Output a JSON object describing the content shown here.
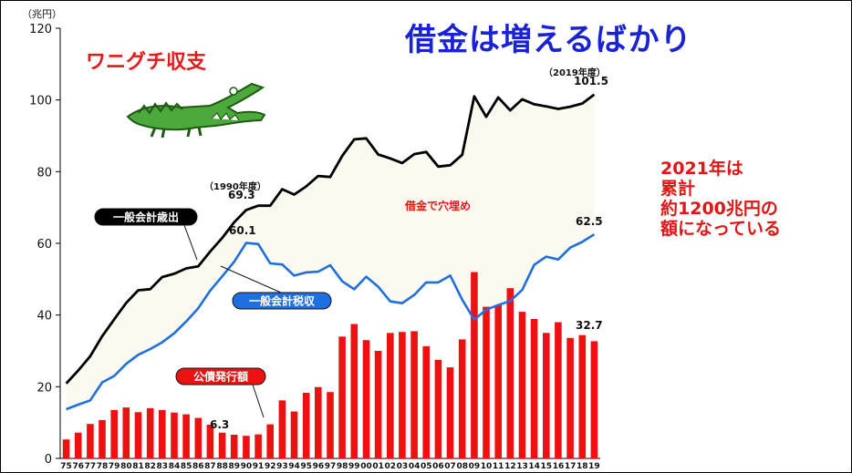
{
  "title": "借金は増えるばかり",
  "wani_label": "ワニグチ収支",
  "note_lines": [
    "2021年は",
    "累計",
    "約1200兆円の",
    "額になっている"
  ],
  "y_unit": "（兆円）",
  "gap_label": "借金で穴埋め",
  "legend": {
    "expenditure": "一般会計歳出",
    "revenue": "一般会計税収",
    "bonds": "公債発行額"
  },
  "annotations": {
    "fy1990_label": "（1990年度）",
    "fy1990_value": "69.3",
    "fy2019_label": "（2019年度）",
    "fy2019_value": "101.5",
    "rev_peak": "60.1",
    "rev_last": "62.5",
    "bond_min": "6.3",
    "bond_last": "32.7"
  },
  "colors": {
    "title": "#1a22d6",
    "accent_red": "#e81818",
    "expenditure": "#000000",
    "revenue": "#1f6fe0",
    "bonds": "#ee1111",
    "gap_fill": "#fafaf1"
  },
  "icons": [
    "crocodile-icon"
  ],
  "chart_data": {
    "type": "bar",
    "ylim": [
      0,
      120
    ],
    "yticks": [
      0,
      20,
      40,
      60,
      80,
      100,
      120
    ],
    "categories": [
      "75",
      "76",
      "77",
      "78",
      "79",
      "80",
      "81",
      "82",
      "83",
      "84",
      "85",
      "86",
      "87",
      "88",
      "89",
      "90",
      "91",
      "92",
      "93",
      "94",
      "95",
      "96",
      "97",
      "98",
      "99",
      "00",
      "01",
      "02",
      "03",
      "04",
      "05",
      "06",
      "07",
      "08",
      "09",
      "10",
      "11",
      "12",
      "13",
      "14",
      "15",
      "16",
      "17",
      "18",
      "19"
    ],
    "series": [
      {
        "name": "一般会計歳出",
        "kind": "line",
        "values": [
          20.9,
          24.5,
          28.5,
          34.1,
          38.8,
          43.4,
          46.9,
          47.2,
          50.6,
          51.5,
          53.0,
          53.6,
          57.7,
          61.5,
          65.9,
          69.3,
          70.5,
          70.5,
          75.1,
          73.6,
          75.9,
          78.8,
          78.5,
          84.4,
          89.0,
          89.3,
          84.8,
          83.7,
          82.4,
          84.9,
          85.5,
          81.4,
          81.8,
          84.7,
          101.0,
          95.3,
          100.7,
          97.1,
          100.2,
          98.8,
          98.2,
          97.5,
          98.1,
          99.0,
          101.5
        ]
      },
      {
        "name": "一般会計税収",
        "kind": "line",
        "values": [
          13.7,
          15.0,
          16.2,
          21.2,
          23.0,
          26.4,
          28.9,
          30.5,
          32.4,
          34.9,
          38.2,
          41.9,
          46.8,
          50.8,
          54.9,
          60.1,
          59.8,
          54.4,
          54.1,
          51.0,
          51.9,
          52.1,
          53.9,
          49.4,
          47.2,
          50.7,
          47.9,
          43.8,
          43.3,
          45.6,
          49.1,
          49.1,
          51.0,
          44.3,
          38.7,
          41.5,
          42.8,
          43.9,
          47.0,
          54.0,
          56.3,
          55.5,
          58.8,
          60.4,
          62.5
        ]
      },
      {
        "name": "公債発行額",
        "kind": "bar",
        "values": [
          5.3,
          7.2,
          9.6,
          10.7,
          13.5,
          14.2,
          12.9,
          14.0,
          13.5,
          12.8,
          12.3,
          11.3,
          9.4,
          7.2,
          6.6,
          6.3,
          6.7,
          9.5,
          16.2,
          13.1,
          18.3,
          19.9,
          18.5,
          34.0,
          37.5,
          33.0,
          30.0,
          35.0,
          35.3,
          35.5,
          31.3,
          27.5,
          25.4,
          33.2,
          52.0,
          42.3,
          42.8,
          47.5,
          40.9,
          38.9,
          35.0,
          38.0,
          33.6,
          34.4,
          32.7
        ]
      }
    ]
  }
}
